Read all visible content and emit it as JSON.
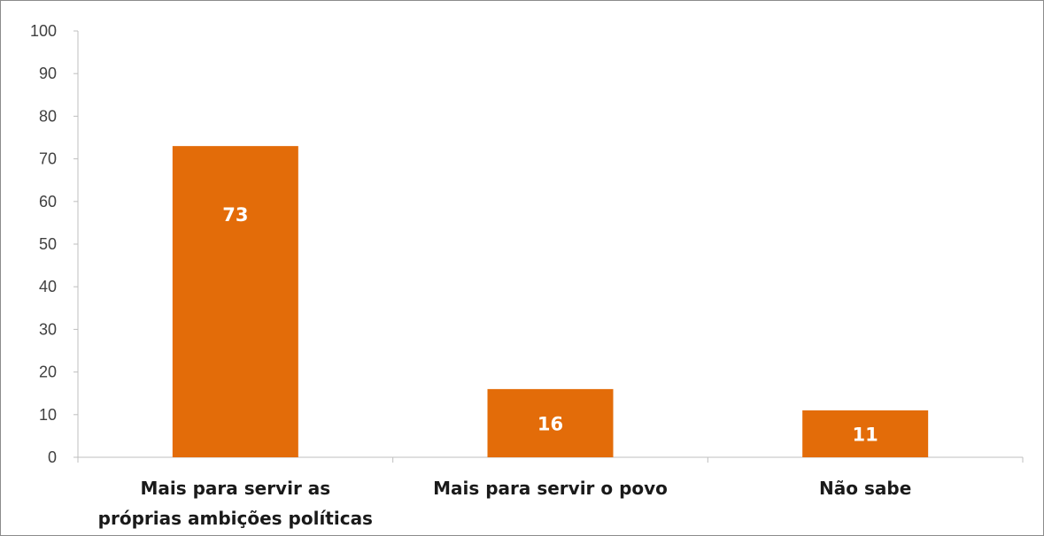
{
  "chart_data": {
    "type": "bar",
    "categories": [
      [
        "Mais para servir as",
        "próprias ambições políticas"
      ],
      [
        "Mais para servir o povo"
      ],
      [
        "Não sabe"
      ]
    ],
    "values": [
      73,
      16,
      11
    ],
    "data_labels": [
      "73",
      "16",
      "11"
    ],
    "ylim": [
      0,
      100
    ],
    "yticks": [
      "0",
      "10",
      "20",
      "30",
      "40",
      "50",
      "60",
      "70",
      "80",
      "90",
      "100"
    ],
    "grid": false,
    "legend": "none",
    "bar_color": "#E36C09",
    "axis_color": "#bfbfbf"
  }
}
